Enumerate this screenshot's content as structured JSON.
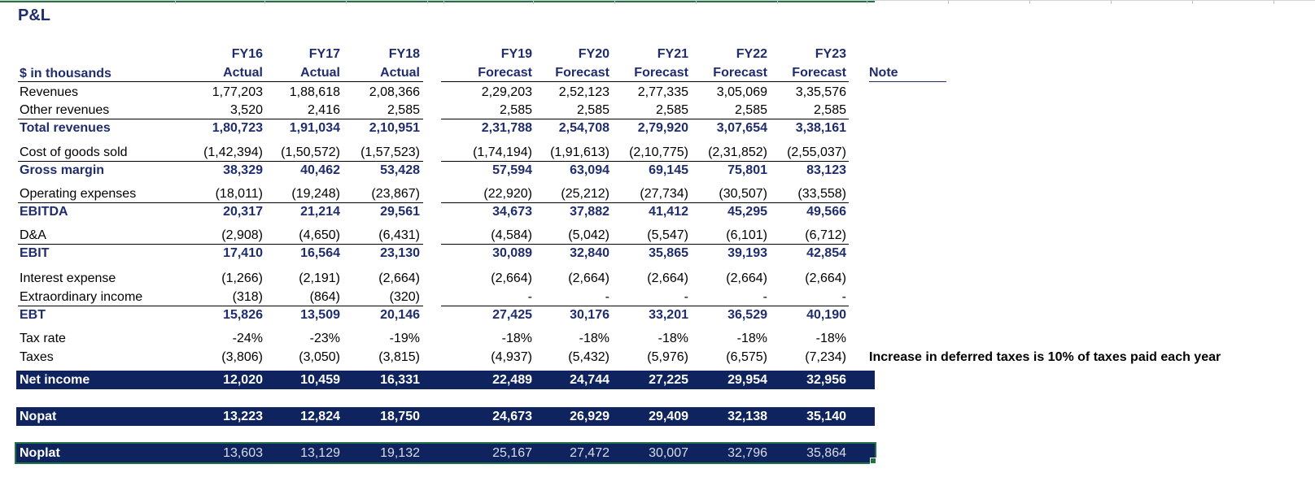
{
  "title": "P&L",
  "units_label": "$ in thousands",
  "note_header": "Note",
  "columns": [
    {
      "year": "FY16",
      "type": "Actual"
    },
    {
      "year": "FY17",
      "type": "Actual"
    },
    {
      "year": "FY18",
      "type": "Actual"
    },
    {
      "year": "FY19",
      "type": "Forecast"
    },
    {
      "year": "FY20",
      "type": "Forecast"
    },
    {
      "year": "FY21",
      "type": "Forecast"
    },
    {
      "year": "FY22",
      "type": "Forecast"
    },
    {
      "year": "FY23",
      "type": "Forecast"
    }
  ],
  "rows": [
    {
      "label": "Revenues",
      "bold": false,
      "values": [
        "1,77,203",
        "1,88,618",
        "2,08,366",
        "2,29,203",
        "2,52,123",
        "2,77,335",
        "3,05,069",
        "3,35,576"
      ]
    },
    {
      "label": "Other revenues",
      "bold": false,
      "values": [
        "3,520",
        "2,416",
        "2,585",
        "2,585",
        "2,585",
        "2,585",
        "2,585",
        "2,585"
      ]
    },
    {
      "label": "Total revenues",
      "bold": true,
      "values": [
        "1,80,723",
        "1,91,034",
        "2,10,951",
        "2,31,788",
        "2,54,708",
        "2,79,920",
        "3,07,654",
        "3,38,161"
      ]
    },
    {
      "label": "Cost of goods sold",
      "bold": false,
      "values": [
        "(1,42,394)",
        "(1,50,572)",
        "(1,57,523)",
        "(1,74,194)",
        "(1,91,613)",
        "(2,10,775)",
        "(2,31,852)",
        "(2,55,037)"
      ]
    },
    {
      "label": "Gross margin",
      "bold": true,
      "values": [
        "38,329",
        "40,462",
        "53,428",
        "57,594",
        "63,094",
        "69,145",
        "75,801",
        "83,123"
      ]
    },
    {
      "label": "Operating expenses",
      "bold": false,
      "values": [
        "(18,011)",
        "(19,248)",
        "(23,867)",
        "(22,920)",
        "(25,212)",
        "(27,734)",
        "(30,507)",
        "(33,558)"
      ]
    },
    {
      "label": "EBITDA",
      "bold": true,
      "values": [
        "20,317",
        "21,214",
        "29,561",
        "34,673",
        "37,882",
        "41,412",
        "45,295",
        "49,566"
      ]
    },
    {
      "label": "D&A",
      "bold": false,
      "values": [
        "(2,908)",
        "(4,650)",
        "(6,431)",
        "(4,584)",
        "(5,042)",
        "(5,547)",
        "(6,101)",
        "(6,712)"
      ]
    },
    {
      "label": "EBIT",
      "bold": true,
      "values": [
        "17,410",
        "16,564",
        "23,130",
        "30,089",
        "32,840",
        "35,865",
        "39,193",
        "42,854"
      ]
    },
    {
      "label": "Interest expense",
      "bold": false,
      "values": [
        "(1,266)",
        "(2,191)",
        "(2,664)",
        "(2,664)",
        "(2,664)",
        "(2,664)",
        "(2,664)",
        "(2,664)"
      ]
    },
    {
      "label": "Extraordinary income",
      "bold": false,
      "values": [
        "(318)",
        "(864)",
        "(320)",
        "-",
        "-",
        "-",
        "-",
        "-"
      ]
    },
    {
      "label": "EBT",
      "bold": true,
      "values": [
        "15,826",
        "13,509",
        "20,146",
        "27,425",
        "30,176",
        "33,201",
        "36,529",
        "40,190"
      ]
    },
    {
      "label": "Tax rate",
      "bold": false,
      "values": [
        "-24%",
        "-23%",
        "-19%",
        "-18%",
        "-18%",
        "-18%",
        "-18%",
        "-18%"
      ]
    },
    {
      "label": "Taxes",
      "bold": false,
      "values": [
        "(3,806)",
        "(3,050)",
        "(3,815)",
        "(4,937)",
        "(5,432)",
        "(5,976)",
        "(6,575)",
        "(7,234)"
      ]
    }
  ],
  "taxes_note": "Increase in deferred taxes is 10% of taxes paid each year",
  "bands": [
    {
      "label": "Net income",
      "values": [
        "12,020",
        "10,459",
        "16,331",
        "22,489",
        "24,744",
        "27,225",
        "29,954",
        "32,956"
      ]
    },
    {
      "label": "Nopat",
      "values": [
        "13,223",
        "12,824",
        "18,750",
        "24,673",
        "26,929",
        "29,409",
        "32,138",
        "35,140"
      ]
    },
    {
      "label": "Noplat",
      "values": [
        "13,603",
        "13,129",
        "19,132",
        "25,167",
        "27,472",
        "30,007",
        "32,796",
        "35,864"
      ]
    }
  ],
  "colors": {
    "navy": "#1f2d6e",
    "band": "#0f245e",
    "selection": "#217346"
  }
}
